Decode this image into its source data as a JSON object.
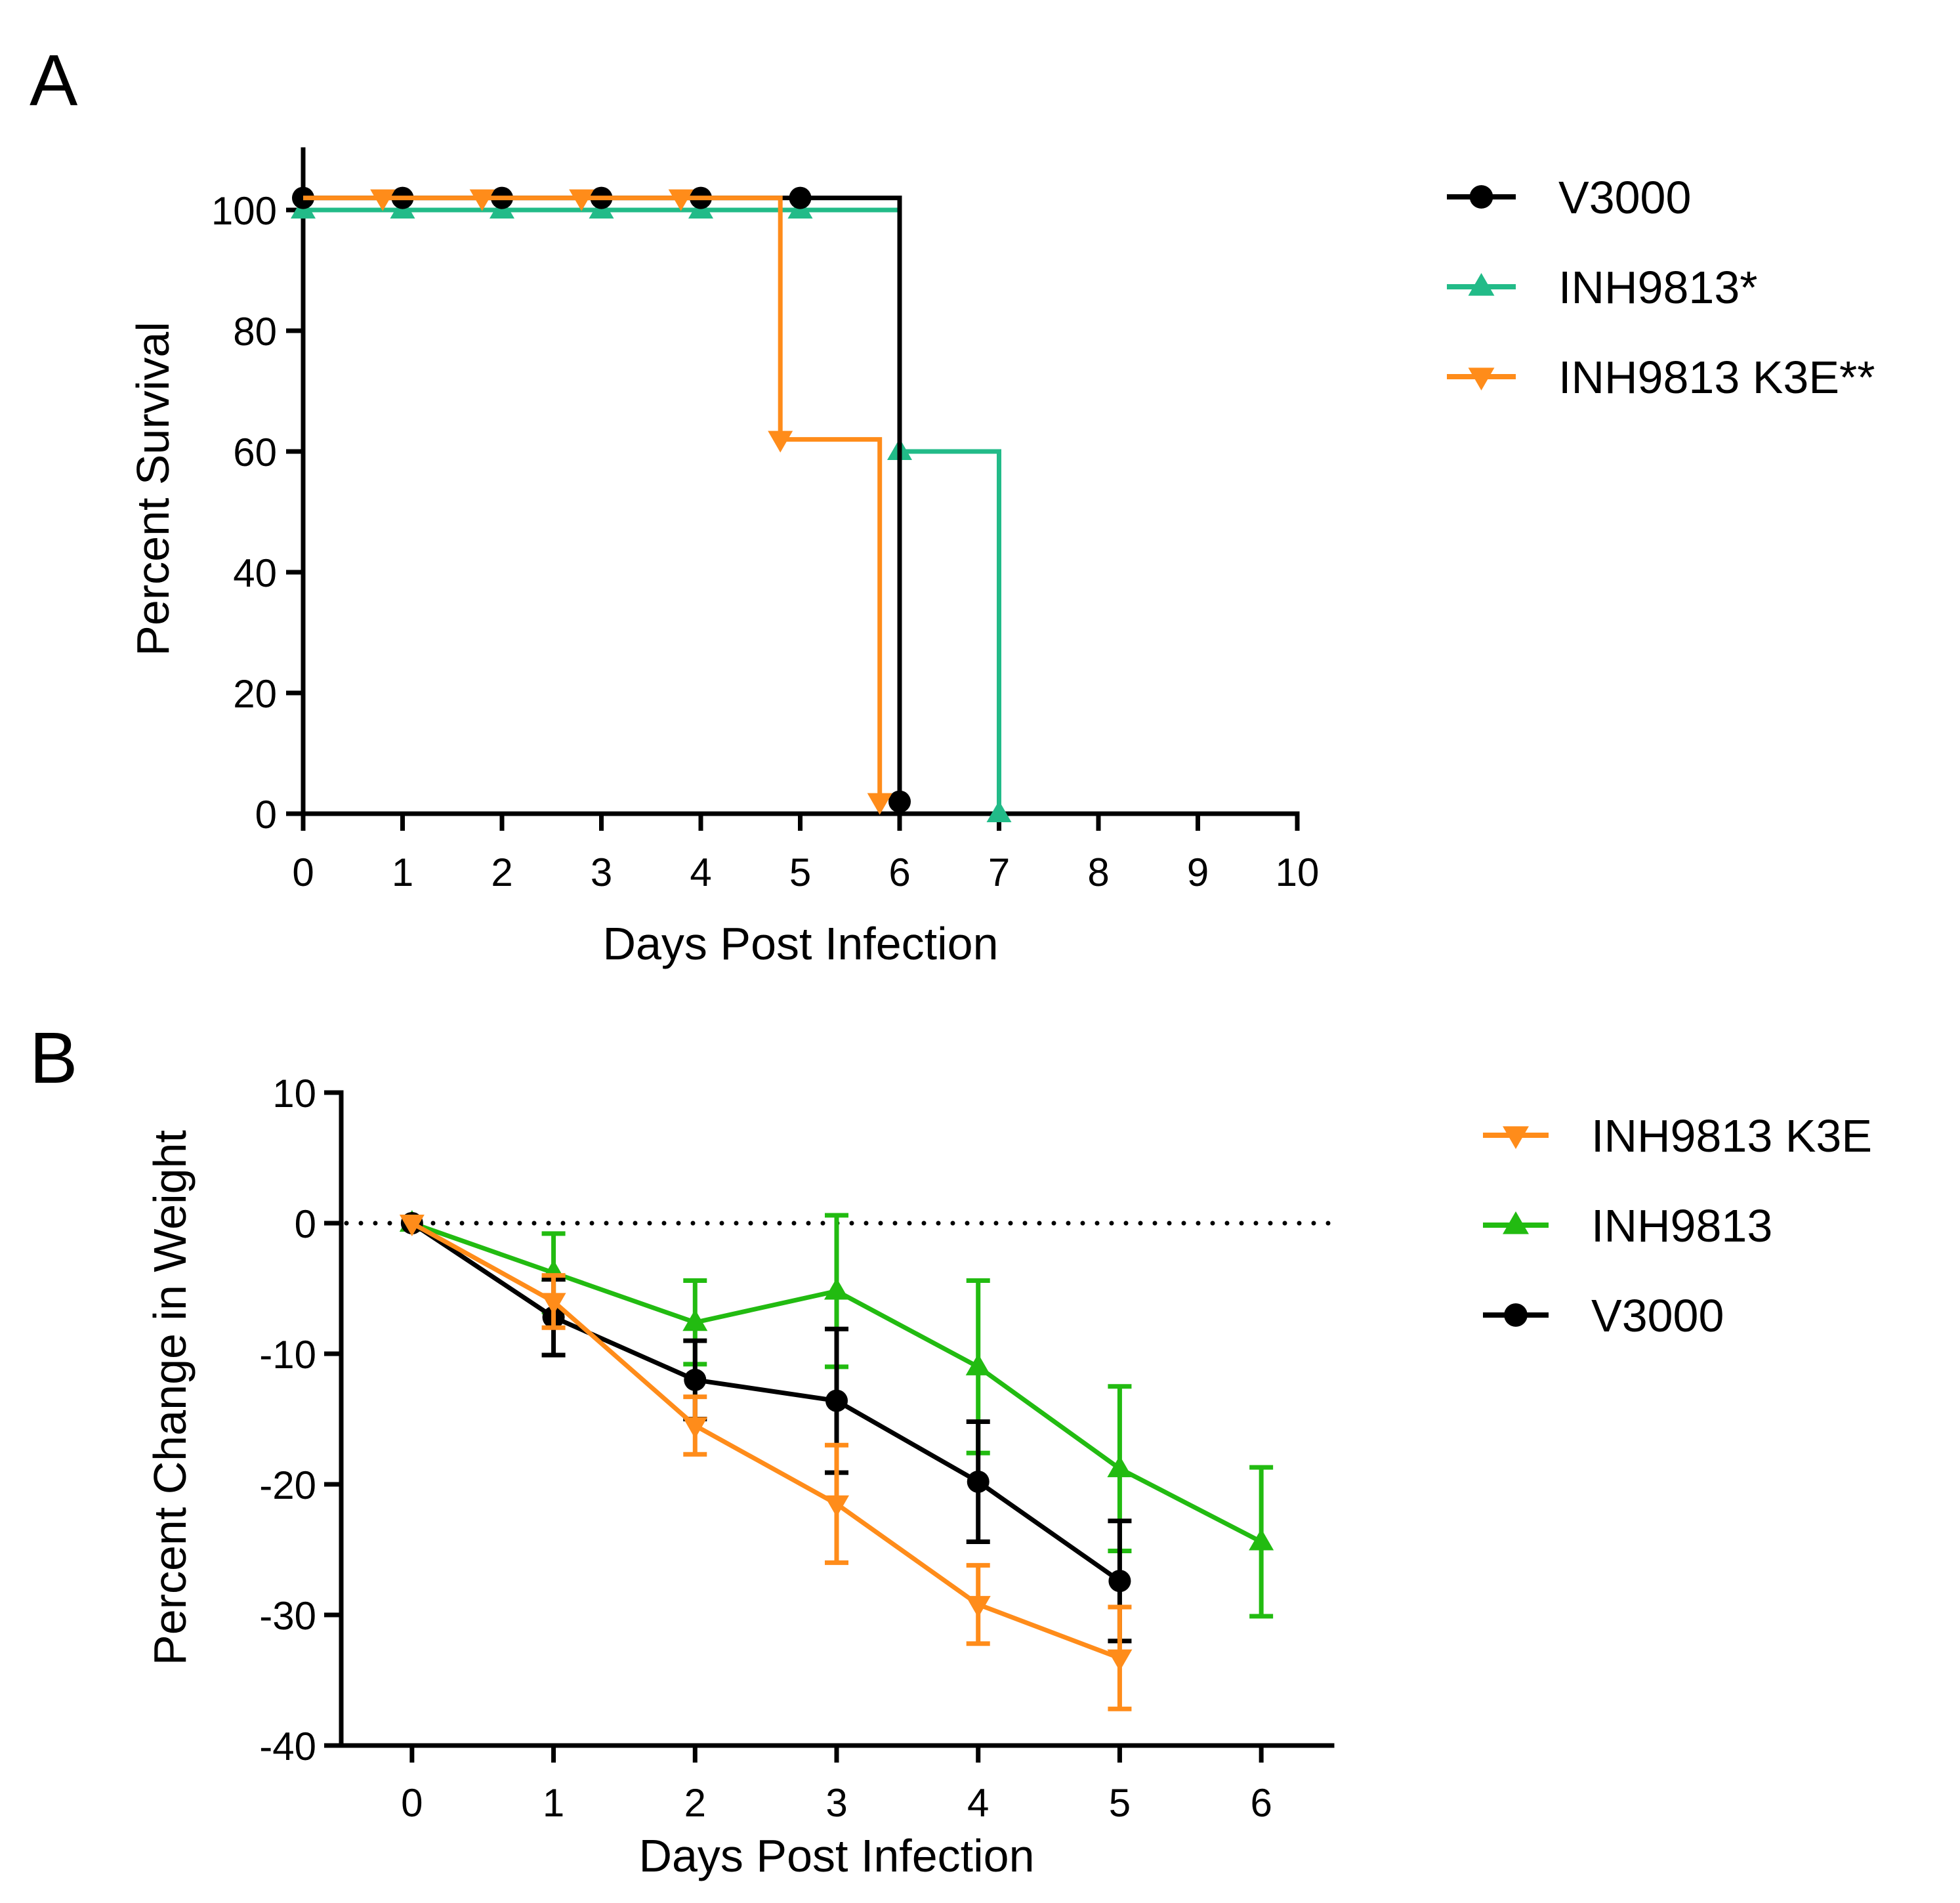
{
  "figure": {
    "panels": [
      "A",
      "B"
    ]
  },
  "chart_data": [
    {
      "panel": "A",
      "type": "line",
      "subtype": "kaplan-meier survival",
      "xlabel": "Days Post Infection",
      "ylabel": "Percent Survival",
      "xlim": [
        0,
        10
      ],
      "ylim": [
        0,
        110
      ],
      "xticks": [
        0,
        1,
        2,
        3,
        4,
        5,
        6,
        7,
        8,
        9,
        10
      ],
      "yticks": [
        0,
        20,
        40,
        60,
        80,
        100
      ],
      "legend_position": "right",
      "series": [
        {
          "name": "V3000",
          "color": "#000000",
          "marker": "circle",
          "offset": 2,
          "steps": [
            [
              0,
              100
            ],
            [
              6,
              0
            ]
          ],
          "markers": [
            [
              0,
              100
            ],
            [
              1,
              100
            ],
            [
              2,
              100
            ],
            [
              3,
              100
            ],
            [
              4,
              100
            ],
            [
              5,
              100
            ],
            [
              6,
              0
            ]
          ]
        },
        {
          "name": "INH9813*",
          "color": "#22bb88",
          "marker": "triangle-up",
          "offset": 0,
          "steps": [
            [
              0,
              100
            ],
            [
              6,
              60
            ],
            [
              7,
              0
            ]
          ],
          "markers": [
            [
              0,
              100
            ],
            [
              1,
              100
            ],
            [
              2,
              100
            ],
            [
              3,
              100
            ],
            [
              4,
              100
            ],
            [
              5,
              100
            ],
            [
              6,
              60
            ],
            [
              7,
              0
            ]
          ]
        },
        {
          "name": "INH9813 K3E**",
          "color": "#ff8c1a",
          "marker": "triangle-down",
          "offset": 2,
          "steps": [
            [
              0,
              100
            ],
            [
              4.8,
              60
            ],
            [
              5.8,
              0
            ]
          ],
          "markers": [
            [
              0.8,
              100
            ],
            [
              1.8,
              100
            ],
            [
              2.8,
              100
            ],
            [
              3.8,
              100
            ],
            [
              4.8,
              60
            ],
            [
              5.8,
              0
            ]
          ]
        }
      ]
    },
    {
      "panel": "B",
      "type": "line",
      "xlabel": "Days Post Infection",
      "ylabel": "Percent Change in Weight",
      "xlim": [
        -0.5,
        6.5
      ],
      "ylim": [
        -40,
        10
      ],
      "xticks": [
        0,
        1,
        2,
        3,
        4,
        5,
        6
      ],
      "yticks": [
        10,
        0,
        -10,
        -20,
        -30,
        -40
      ],
      "reference_line": 0,
      "legend_position": "right",
      "series": [
        {
          "name": "INH9813 K3E",
          "color": "#ff8c1a",
          "marker": "triangle-down",
          "x": [
            0,
            1,
            2,
            3,
            4,
            5
          ],
          "y": [
            0,
            -6.0,
            -15.5,
            -21.5,
            -29.2,
            -33.3
          ],
          "err": [
            0,
            2.0,
            2.2,
            4.5,
            3.0,
            3.9
          ]
        },
        {
          "name": "INH9813",
          "color": "#22bb11",
          "marker": "triangle-up",
          "x": [
            0,
            1,
            2,
            3,
            4,
            5,
            6
          ],
          "y": [
            0,
            -3.8,
            -7.6,
            -5.2,
            -11.0,
            -18.8,
            -24.4
          ],
          "err": [
            0,
            3.0,
            3.2,
            5.8,
            6.6,
            6.3,
            5.7
          ]
        },
        {
          "name": "V3000",
          "color": "#000000",
          "marker": "circle",
          "x": [
            0,
            1,
            2,
            3,
            4,
            5
          ],
          "y": [
            0,
            -7.2,
            -12.0,
            -13.6,
            -19.8,
            -27.4
          ],
          "err": [
            0,
            2.9,
            3.0,
            5.5,
            4.6,
            4.6
          ]
        }
      ]
    }
  ]
}
